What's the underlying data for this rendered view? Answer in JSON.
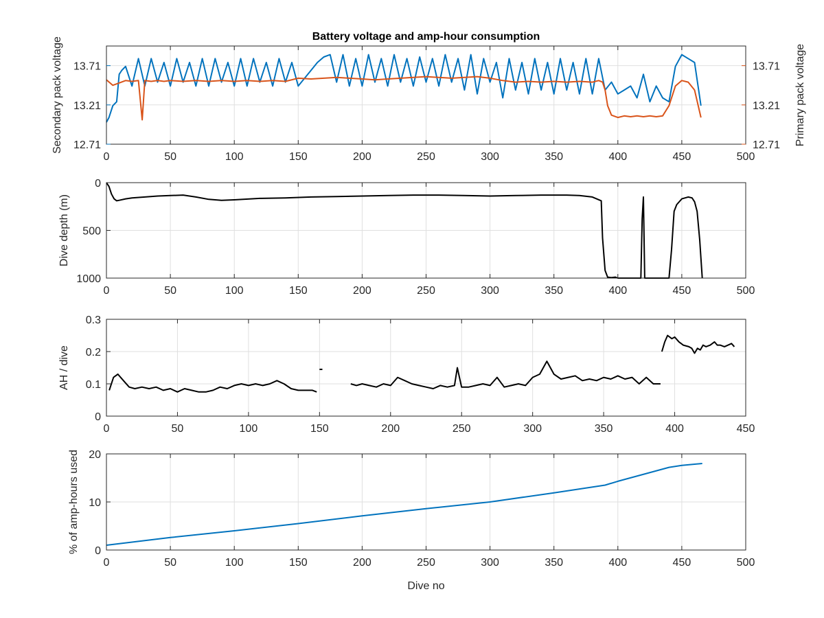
{
  "chart_data": [
    {
      "type": "line",
      "title": "Battery voltage and amp-hour consumption",
      "xlim": [
        0,
        500
      ],
      "xticks": [
        0,
        50,
        100,
        150,
        200,
        250,
        300,
        350,
        400,
        450,
        500
      ],
      "y_left": {
        "label": "Secondary pack voltage",
        "lim": [
          12.71,
          13.96
        ],
        "ticks": [
          12.71,
          13.21,
          13.71
        ],
        "color": "#0072BD"
      },
      "y_right": {
        "label": "Primary pack voltage",
        "lim": [
          12.71,
          13.96
        ],
        "ticks": [
          12.71,
          13.21,
          13.71
        ],
        "color": "#D95319"
      },
      "series": [
        {
          "axis": "left",
          "color": "#0072BD",
          "x": [
            0,
            2,
            5,
            8,
            10,
            12,
            15,
            20,
            25,
            30,
            35,
            40,
            45,
            50,
            55,
            60,
            65,
            70,
            75,
            80,
            85,
            90,
            95,
            100,
            105,
            110,
            115,
            120,
            125,
            130,
            135,
            140,
            145,
            150,
            155,
            160,
            165,
            170,
            175,
            180,
            185,
            190,
            195,
            200,
            205,
            210,
            215,
            220,
            225,
            230,
            235,
            240,
            245,
            250,
            255,
            260,
            265,
            270,
            275,
            280,
            285,
            290,
            295,
            300,
            305,
            310,
            315,
            320,
            325,
            330,
            335,
            340,
            345,
            350,
            355,
            360,
            365,
            370,
            375,
            380,
            385,
            390,
            395,
            400,
            405,
            410,
            415,
            420,
            425,
            430,
            435,
            440,
            445,
            450,
            455,
            460,
            465
          ],
          "y": [
            12.99,
            13.05,
            13.2,
            13.25,
            13.6,
            13.65,
            13.7,
            13.45,
            13.8,
            13.45,
            13.8,
            13.5,
            13.75,
            13.45,
            13.8,
            13.5,
            13.75,
            13.45,
            13.8,
            13.45,
            13.8,
            13.5,
            13.75,
            13.45,
            13.8,
            13.45,
            13.8,
            13.5,
            13.75,
            13.45,
            13.8,
            13.5,
            13.75,
            13.45,
            13.55,
            13.65,
            13.75,
            13.82,
            13.85,
            13.5,
            13.85,
            13.45,
            13.8,
            13.45,
            13.85,
            13.5,
            13.8,
            13.45,
            13.85,
            13.5,
            13.8,
            13.45,
            13.82,
            13.5,
            13.8,
            13.45,
            13.85,
            13.5,
            13.8,
            13.4,
            13.85,
            13.35,
            13.8,
            13.5,
            13.75,
            13.3,
            13.8,
            13.4,
            13.75,
            13.35,
            13.8,
            13.4,
            13.75,
            13.35,
            13.8,
            13.4,
            13.75,
            13.35,
            13.8,
            13.35,
            13.8,
            13.4,
            13.5,
            13.35,
            13.4,
            13.45,
            13.3,
            13.6,
            13.25,
            13.45,
            13.3,
            13.25,
            13.7,
            13.85,
            13.8,
            13.75,
            13.2
          ]
        },
        {
          "axis": "right",
          "color": "#D95319",
          "x": [
            0,
            5,
            10,
            15,
            20,
            25,
            28,
            30,
            35,
            40,
            45,
            50,
            60,
            70,
            80,
            90,
            100,
            110,
            120,
            130,
            140,
            150,
            160,
            170,
            180,
            190,
            200,
            210,
            220,
            230,
            240,
            250,
            260,
            270,
            280,
            290,
            300,
            310,
            320,
            330,
            340,
            350,
            360,
            370,
            380,
            385,
            388,
            390,
            392,
            395,
            400,
            405,
            410,
            415,
            420,
            425,
            430,
            435,
            440,
            445,
            450,
            455,
            460,
            465
          ],
          "y": [
            13.53,
            13.46,
            13.49,
            13.52,
            13.51,
            13.52,
            13.02,
            13.52,
            13.51,
            13.52,
            13.51,
            13.52,
            13.51,
            13.52,
            13.51,
            13.52,
            13.51,
            13.52,
            13.51,
            13.52,
            13.51,
            13.55,
            13.54,
            13.55,
            13.56,
            13.55,
            13.54,
            13.53,
            13.54,
            13.55,
            13.56,
            13.57,
            13.56,
            13.55,
            13.56,
            13.57,
            13.55,
            13.52,
            13.5,
            13.51,
            13.5,
            13.51,
            13.5,
            13.51,
            13.5,
            13.52,
            13.5,
            13.4,
            13.2,
            13.08,
            13.05,
            13.07,
            13.06,
            13.07,
            13.06,
            13.07,
            13.06,
            13.07,
            13.2,
            13.45,
            13.52,
            13.5,
            13.4,
            13.05
          ]
        }
      ]
    },
    {
      "type": "line",
      "xlim": [
        0,
        500
      ],
      "xticks": [
        0,
        50,
        100,
        150,
        200,
        250,
        300,
        350,
        400,
        450,
        500
      ],
      "ylabel": "Dive depth (m)",
      "ylim": [
        0,
        1000
      ],
      "yreverse": true,
      "yticks": [
        0,
        500,
        1000
      ],
      "series": [
        {
          "color": "#000000",
          "x": [
            0,
            2,
            4,
            6,
            8,
            10,
            15,
            20,
            30,
            40,
            50,
            60,
            70,
            80,
            90,
            100,
            120,
            140,
            160,
            180,
            200,
            220,
            240,
            260,
            280,
            300,
            320,
            340,
            360,
            370,
            380,
            387,
            388,
            390,
            392,
            395,
            398,
            400,
            405,
            410,
            415,
            418,
            419,
            420,
            421,
            424,
            430,
            440,
            442,
            444,
            446,
            450,
            455,
            458,
            460,
            462,
            464,
            466
          ],
          "y": [
            0,
            40,
            120,
            170,
            190,
            185,
            170,
            160,
            150,
            140,
            135,
            130,
            150,
            175,
            185,
            180,
            165,
            160,
            150,
            145,
            140,
            135,
            130,
            130,
            135,
            140,
            135,
            130,
            130,
            135,
            150,
            190,
            580,
            920,
            990,
            995,
            990,
            1000,
            1000,
            1000,
            1000,
            1000,
            380,
            150,
            1000,
            1000,
            1000,
            1000,
            700,
            300,
            230,
            170,
            150,
            160,
            200,
            300,
            600,
            1000
          ]
        }
      ]
    },
    {
      "type": "line",
      "xlim": [
        0,
        450
      ],
      "xticks": [
        0,
        50,
        100,
        150,
        200,
        250,
        300,
        350,
        400,
        450
      ],
      "ylabel": "AH / dive",
      "ylim": [
        0,
        0.3
      ],
      "yticks": [
        0,
        0.1,
        0.2,
        0.3
      ],
      "series": [
        {
          "color": "#000000",
          "segments": [
            {
              "x": [
                2,
                5,
                8,
                12,
                16,
                20,
                25,
                30,
                35,
                40,
                45,
                50,
                55,
                60,
                65,
                70,
                75,
                80,
                85,
                90,
                95,
                100,
                105,
                110,
                115,
                120,
                125,
                130,
                135,
                140,
                145,
                148
              ],
              "y": [
                0.08,
                0.12,
                0.13,
                0.11,
                0.09,
                0.085,
                0.09,
                0.085,
                0.09,
                0.08,
                0.085,
                0.075,
                0.085,
                0.08,
                0.075,
                0.075,
                0.08,
                0.09,
                0.085,
                0.095,
                0.1,
                0.095,
                0.1,
                0.095,
                0.1,
                0.11,
                0.1,
                0.085,
                0.08,
                0.08,
                0.08,
                0.075
              ]
            },
            {
              "x": [
                150,
                152
              ],
              "y": [
                0.145,
                0.145
              ]
            },
            {
              "x": [
                172,
                176,
                180,
                185,
                190,
                195,
                200,
                205,
                210,
                215,
                220,
                225,
                230,
                235,
                240,
                245,
                247,
                250,
                255,
                260,
                265,
                270,
                275,
                280,
                285,
                290,
                295,
                300,
                305,
                310,
                315,
                320,
                325,
                330,
                335,
                340,
                345,
                350,
                355,
                360,
                365,
                370,
                375,
                380,
                385,
                390
              ],
              "y": [
                0.1,
                0.095,
                0.1,
                0.095,
                0.09,
                0.1,
                0.095,
                0.12,
                0.11,
                0.1,
                0.095,
                0.09,
                0.085,
                0.095,
                0.09,
                0.095,
                0.15,
                0.09,
                0.09,
                0.095,
                0.1,
                0.095,
                0.12,
                0.09,
                0.095,
                0.1,
                0.095,
                0.12,
                0.13,
                0.17,
                0.13,
                0.115,
                0.12,
                0.125,
                0.11,
                0.115,
                0.11,
                0.12,
                0.115,
                0.125,
                0.115,
                0.12,
                0.1,
                0.12,
                0.1,
                0.1
              ]
            },
            {
              "x": [
                391,
                393,
                395,
                398,
                400,
                403,
                406,
                410,
                412,
                414,
                416,
                418,
                420,
                422,
                425,
                428,
                430,
                432,
                435,
                440,
                442
              ],
              "y": [
                0.2,
                0.23,
                0.25,
                0.24,
                0.245,
                0.23,
                0.22,
                0.215,
                0.21,
                0.195,
                0.21,
                0.205,
                0.22,
                0.215,
                0.22,
                0.23,
                0.22,
                0.22,
                0.215,
                0.225,
                0.215
              ]
            }
          ]
        }
      ]
    },
    {
      "type": "line",
      "xlim": [
        0,
        500
      ],
      "xticks": [
        0,
        50,
        100,
        150,
        200,
        250,
        300,
        350,
        400,
        450,
        500
      ],
      "xlabel": "Dive no",
      "ylabel": "% of amp-hours used",
      "ylim": [
        0,
        20
      ],
      "yticks": [
        0,
        10,
        20
      ],
      "series": [
        {
          "color": "#0072BD",
          "x": [
            0,
            50,
            100,
            150,
            200,
            250,
            300,
            350,
            390,
            400,
            440,
            450,
            466
          ],
          "y": [
            1.0,
            2.6,
            4.0,
            5.5,
            7.1,
            8.6,
            10.0,
            11.9,
            13.5,
            14.3,
            17.2,
            17.6,
            18.0
          ]
        }
      ]
    }
  ]
}
